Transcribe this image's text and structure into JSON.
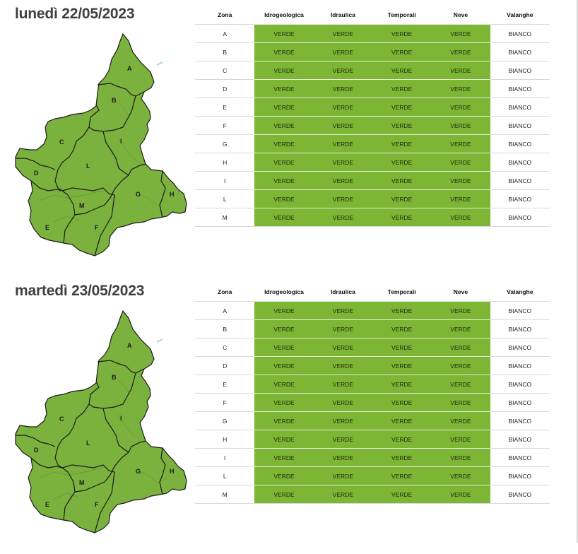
{
  "columns": {
    "zona": "Zona",
    "idrogeologica": "Idrogeologica",
    "idraulica": "Idraulica",
    "temporali": "Temporali",
    "neve": "Neve",
    "valanghe": "Valanghe"
  },
  "map_zone_labels": {
    "A": "A",
    "B": "B",
    "C": "C",
    "D": "D",
    "E": "E",
    "F": "F",
    "G": "G",
    "H": "H",
    "I": "I",
    "L": "L",
    "M": "M"
  },
  "colors": {
    "level_green": "#7db534",
    "map_fill": "#7bb13d"
  },
  "days": [
    {
      "title": "lunedì 22/05/2023",
      "rows": [
        {
          "zona": "A",
          "idrogeologica": "VERDE",
          "idraulica": "VERDE",
          "temporali": "VERDE",
          "neve": "VERDE",
          "valanghe": "BIANCO"
        },
        {
          "zona": "B",
          "idrogeologica": "VERDE",
          "idraulica": "VERDE",
          "temporali": "VERDE",
          "neve": "VERDE",
          "valanghe": "BIANCO"
        },
        {
          "zona": "C",
          "idrogeologica": "VERDE",
          "idraulica": "VERDE",
          "temporali": "VERDE",
          "neve": "VERDE",
          "valanghe": "BIANCO"
        },
        {
          "zona": "D",
          "idrogeologica": "VERDE",
          "idraulica": "VERDE",
          "temporali": "VERDE",
          "neve": "VERDE",
          "valanghe": "BIANCO"
        },
        {
          "zona": "E",
          "idrogeologica": "VERDE",
          "idraulica": "VERDE",
          "temporali": "VERDE",
          "neve": "VERDE",
          "valanghe": "BIANCO"
        },
        {
          "zona": "F",
          "idrogeologica": "VERDE",
          "idraulica": "VERDE",
          "temporali": "VERDE",
          "neve": "VERDE",
          "valanghe": "BIANCO"
        },
        {
          "zona": "G",
          "idrogeologica": "VERDE",
          "idraulica": "VERDE",
          "temporali": "VERDE",
          "neve": "VERDE",
          "valanghe": "BIANCO"
        },
        {
          "zona": "H",
          "idrogeologica": "VERDE",
          "idraulica": "VERDE",
          "temporali": "VERDE",
          "neve": "VERDE",
          "valanghe": "BIANCO"
        },
        {
          "zona": "I",
          "idrogeologica": "VERDE",
          "idraulica": "VERDE",
          "temporali": "VERDE",
          "neve": "VERDE",
          "valanghe": "BIANCO"
        },
        {
          "zona": "L",
          "idrogeologica": "VERDE",
          "idraulica": "VERDE",
          "temporali": "VERDE",
          "neve": "VERDE",
          "valanghe": "BIANCO"
        },
        {
          "zona": "M",
          "idrogeologica": "VERDE",
          "idraulica": "VERDE",
          "temporali": "VERDE",
          "neve": "VERDE",
          "valanghe": "BIANCO"
        }
      ]
    },
    {
      "title": "martedì 23/05/2023",
      "rows": [
        {
          "zona": "A",
          "idrogeologica": "VERDE",
          "idraulica": "VERDE",
          "temporali": "VERDE",
          "neve": "VERDE",
          "valanghe": "BIANCO"
        },
        {
          "zona": "B",
          "idrogeologica": "VERDE",
          "idraulica": "VERDE",
          "temporali": "VERDE",
          "neve": "VERDE",
          "valanghe": "BIANCO"
        },
        {
          "zona": "C",
          "idrogeologica": "VERDE",
          "idraulica": "VERDE",
          "temporali": "VERDE",
          "neve": "VERDE",
          "valanghe": "BIANCO"
        },
        {
          "zona": "D",
          "idrogeologica": "VERDE",
          "idraulica": "VERDE",
          "temporali": "VERDE",
          "neve": "VERDE",
          "valanghe": "BIANCO"
        },
        {
          "zona": "E",
          "idrogeologica": "VERDE",
          "idraulica": "VERDE",
          "temporali": "VERDE",
          "neve": "VERDE",
          "valanghe": "BIANCO"
        },
        {
          "zona": "F",
          "idrogeologica": "VERDE",
          "idraulica": "VERDE",
          "temporali": "VERDE",
          "neve": "VERDE",
          "valanghe": "BIANCO"
        },
        {
          "zona": "G",
          "idrogeologica": "VERDE",
          "idraulica": "VERDE",
          "temporali": "VERDE",
          "neve": "VERDE",
          "valanghe": "BIANCO"
        },
        {
          "zona": "H",
          "idrogeologica": "VERDE",
          "idraulica": "VERDE",
          "temporali": "VERDE",
          "neve": "VERDE",
          "valanghe": "BIANCO"
        },
        {
          "zona": "I",
          "idrogeologica": "VERDE",
          "idraulica": "VERDE",
          "temporali": "VERDE",
          "neve": "VERDE",
          "valanghe": "BIANCO"
        },
        {
          "zona": "L",
          "idrogeologica": "VERDE",
          "idraulica": "VERDE",
          "temporali": "VERDE",
          "neve": "VERDE",
          "valanghe": "BIANCO"
        },
        {
          "zona": "M",
          "idrogeologica": "VERDE",
          "idraulica": "VERDE",
          "temporali": "VERDE",
          "neve": "VERDE",
          "valanghe": "BIANCO"
        }
      ]
    }
  ]
}
